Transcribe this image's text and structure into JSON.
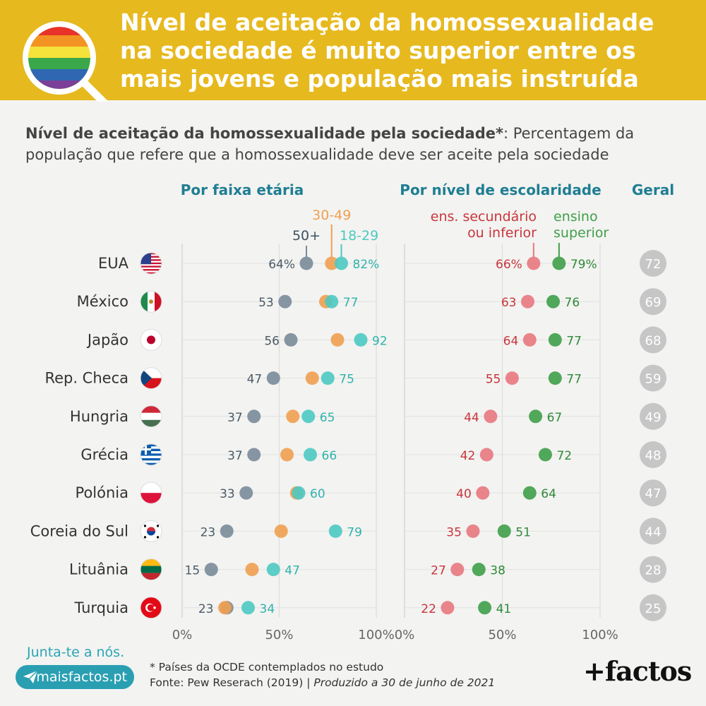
{
  "header": {
    "title": "Nível de aceitação da homossexualidade na sociedade é muito superior entre os mais jovens e população mais instruída"
  },
  "subtitle": {
    "bold": "Nível de aceitação da homossexualidade pela sociedade*",
    "rest": ": Percentagem da população que refere que a homossexualidade deve ser aceite pela sociedade"
  },
  "colors": {
    "age_50plus": "#7a8b99",
    "age_30_49": "#f0a050",
    "age_18_29": "#4cc9c2",
    "edu_low": "#e8787e",
    "edu_high": "#3f9f49",
    "heading": "#1f7e93",
    "overall_circle": "#c6c6c6"
  },
  "chart_data": {
    "type": "scatter",
    "countries": [
      "EUA",
      "México",
      "Japão",
      "Rep. Checa",
      "Hungria",
      "Grécia",
      "Polónia",
      "Coreia do Sul",
      "Lituânia",
      "Turquia"
    ],
    "flags": [
      "us-flag-icon",
      "mexico-flag-icon",
      "japan-flag-icon",
      "czech-flag-icon",
      "hungary-flag-icon",
      "greece-flag-icon",
      "poland-flag-icon",
      "south-korea-flag-icon",
      "lithuania-flag-icon",
      "turkey-flag-icon"
    ],
    "panels": [
      {
        "title": "Por faixa etária",
        "x_ticks": [
          "0%",
          "50%",
          "100%"
        ],
        "xlim": [
          0,
          100
        ],
        "series": [
          {
            "name": "50+",
            "color_key": "age_50plus",
            "values": [
              64,
              53,
              56,
              47,
              37,
              37,
              33,
              23,
              15,
              23
            ],
            "labeled": true
          },
          {
            "name": "30-49",
            "color_key": "age_30_49",
            "values": [
              77,
              74,
              80,
              67,
              57,
              54,
              59,
              51,
              36,
              22
            ],
            "labeled": false
          },
          {
            "name": "18-29",
            "color_key": "age_18_29",
            "values": [
              82,
              77,
              92,
              75,
              65,
              66,
              60,
              79,
              47,
              34
            ],
            "labeled": true
          }
        ],
        "low_labels": [
          "64%",
          "53",
          "56",
          "47",
          "37",
          "37",
          "33",
          "23",
          "15",
          "23"
        ],
        "high_labels": [
          "82%",
          "77",
          "92",
          "75",
          "65",
          "66",
          "60",
          "79",
          "47",
          "34"
        ]
      },
      {
        "title": "Por nível de escolaridade",
        "x_ticks": [
          "0%",
          "50%",
          "100%"
        ],
        "xlim": [
          0,
          100
        ],
        "series": [
          {
            "name": "ens. secundário ou inferior",
            "color_key": "edu_low",
            "values": [
              66,
              63,
              64,
              55,
              44,
              42,
              40,
              35,
              27,
              22
            ],
            "labeled": true
          },
          {
            "name": "ensino superior",
            "color_key": "edu_high",
            "values": [
              79,
              76,
              77,
              77,
              67,
              72,
              64,
              51,
              38,
              41
            ],
            "labeled": true
          }
        ],
        "low_labels": [
          "66%",
          "63",
          "64",
          "55",
          "44",
          "42",
          "40",
          "35",
          "27",
          "22"
        ],
        "high_labels": [
          "79%",
          "76",
          "77",
          "77",
          "67",
          "72",
          "64",
          "51",
          "38",
          "41"
        ]
      }
    ],
    "overall": {
      "title": "Geral",
      "values": [
        72,
        69,
        68,
        59,
        49,
        48,
        47,
        44,
        28,
        25
      ]
    },
    "legend": {
      "age_30_49": "30-49",
      "age_50plus": "50+",
      "age_18_29": "18-29",
      "edu_low_line1": "ens. secundário",
      "edu_low_line2": "ou inferior",
      "edu_high_line1": "ensino",
      "edu_high_line2": "superior"
    }
  },
  "footer": {
    "join": "Junta-te a nós.",
    "site": "maisfactos.pt",
    "note": "* Países da OCDE contemplados no estudo",
    "source": "Fonte: Pew Reserach (2019) | ",
    "produced": "Produzido a 30 de junho de 2021",
    "logo": "+factos"
  }
}
